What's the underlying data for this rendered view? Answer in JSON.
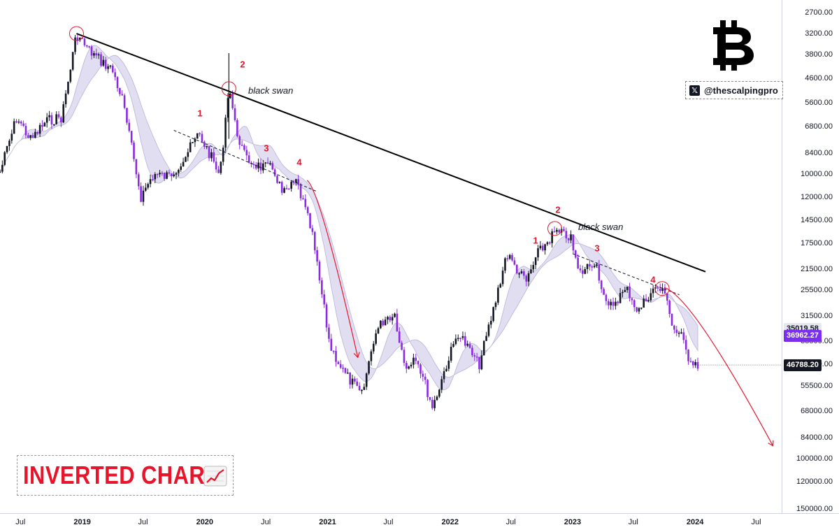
{
  "brand": {
    "handle": "@thescalpingpro",
    "x_glyph": "𝕏",
    "logo": "bitcoin-logo"
  },
  "banner": {
    "text": "INVERTED CHART",
    "icon": "chart-increasing-emoji",
    "color": "#e8142b"
  },
  "annotations": {
    "black_swan_1": "black swan",
    "black_swan_2": "black swan",
    "wave_labels_1": [
      "1",
      "2",
      "3",
      "4"
    ],
    "wave_labels_2": [
      "1",
      "2",
      "3",
      "4"
    ]
  },
  "colors": {
    "candle_up": "#131722",
    "candle_down": "#8a2be2",
    "ma_band": "#c9c3e6",
    "trendline": "#000000",
    "projection": "#e8142b",
    "wave_label": "#e8142b"
  },
  "price_tags": [
    {
      "label": "35019.58",
      "style": "grey"
    },
    {
      "label": "36962.27",
      "style": "purple"
    },
    {
      "label": "46788.20",
      "style": "black"
    }
  ],
  "chart_data": {
    "type": "candlestick",
    "title": "",
    "inverted": true,
    "y_scale": "log",
    "y_ticks": [
      "2700.00",
      "3200.00",
      "3800.00",
      "4600.00",
      "5600.00",
      "6800.00",
      "8400.00",
      "10000.00",
      "12000.00",
      "14500.00",
      "17500.00",
      "21500.00",
      "25500.00",
      "31500.00",
      "38500.00",
      "46500.00",
      "55500.00",
      "68000.00",
      "84000.00",
      "100000.00",
      "120000.00",
      "150000.00"
    ],
    "x_ticks": [
      {
        "label": "Jul",
        "year": false
      },
      {
        "label": "2019",
        "year": true
      },
      {
        "label": "Jul",
        "year": false
      },
      {
        "label": "2020",
        "year": true
      },
      {
        "label": "Jul",
        "year": false
      },
      {
        "label": "2021",
        "year": true
      },
      {
        "label": "Jul",
        "year": false
      },
      {
        "label": "2022",
        "year": true
      },
      {
        "label": "Jul",
        "year": false
      },
      {
        "label": "2023",
        "year": true
      },
      {
        "label": "Jul",
        "year": false
      },
      {
        "label": "2024",
        "year": true
      },
      {
        "label": "Jul",
        "year": false
      }
    ],
    "x_range": [
      "2018-05",
      "2024-09"
    ],
    "price_path": [
      [
        "2018-05-01",
        9800
      ],
      [
        "2018-06-20",
        6300
      ],
      [
        "2018-08-01",
        7600
      ],
      [
        "2018-09-15",
        6500
      ],
      [
        "2018-11-01",
        6300
      ],
      [
        "2018-12-15",
        3200
      ],
      [
        "2019-01-15",
        3600
      ],
      [
        "2019-02-15",
        3900
      ],
      [
        "2019-04-01",
        4300
      ],
      [
        "2019-05-01",
        5500
      ],
      [
        "2019-06-25",
        12000
      ],
      [
        "2019-08-01",
        10000
      ],
      [
        "2019-09-15",
        10200
      ],
      [
        "2019-10-25",
        9000
      ],
      [
        "2019-12-15",
        7200
      ],
      [
        "2020-01-20",
        8700
      ],
      [
        "2020-02-15",
        10200
      ],
      [
        "2020-03-13",
        4800
      ],
      [
        "2020-04-01",
        6800
      ],
      [
        "2020-05-01",
        8800
      ],
      [
        "2020-06-15",
        9400
      ],
      [
        "2020-07-25",
        9600
      ],
      [
        "2020-08-20",
        11800
      ],
      [
        "2020-10-01",
        10600
      ],
      [
        "2020-11-15",
        16000
      ],
      [
        "2021-01-08",
        40000
      ],
      [
        "2021-02-20",
        50000
      ],
      [
        "2021-04-14",
        60000
      ],
      [
        "2021-05-20",
        37000
      ],
      [
        "2021-06-20",
        32000
      ],
      [
        "2021-07-20",
        31000
      ],
      [
        "2021-08-20",
        48000
      ],
      [
        "2021-09-20",
        43000
      ],
      [
        "2021-11-10",
        66000
      ],
      [
        "2021-12-20",
        47000
      ],
      [
        "2022-01-25",
        36000
      ],
      [
        "2022-03-28",
        47000
      ],
      [
        "2022-05-10",
        30000
      ],
      [
        "2022-06-18",
        19000
      ],
      [
        "2022-08-15",
        24000
      ],
      [
        "2022-09-20",
        19000
      ],
      [
        "2022-11-09",
        16000
      ],
      [
        "2022-12-25",
        16600
      ],
      [
        "2023-01-20",
        22500
      ],
      [
        "2023-03-10",
        20000
      ],
      [
        "2023-04-14",
        30000
      ],
      [
        "2023-05-25",
        26500
      ],
      [
        "2023-06-15",
        25500
      ],
      [
        "2023-07-15",
        30500
      ],
      [
        "2023-08-20",
        26000
      ],
      [
        "2023-09-11",
        25000
      ],
      [
        "2023-10-10",
        27000
      ],
      [
        "2023-10-25",
        34500
      ],
      [
        "2023-11-20",
        37000
      ],
      [
        "2023-12-10",
        43500
      ],
      [
        "2024-01-10",
        46788
      ]
    ],
    "trendline": [
      [
        "2018-12-15",
        3200
      ],
      [
        "2024-02-01",
        22000
      ]
    ],
    "dashed_lines": [
      [
        [
          "2019-10-01",
          7000
        ],
        [
          "2020-12-01",
          11500
        ]
      ],
      [
        [
          "2023-01-01",
          19000
        ],
        [
          "2023-11-15",
          26500
        ]
      ]
    ],
    "projections": [
      [
        [
          "2020-11-01",
          10500
        ],
        [
          "2021-04-01",
          44000
        ]
      ],
      [
        [
          "2023-10-01",
          25000
        ],
        [
          "2024-08-20",
          90000
        ]
      ]
    ],
    "circled_points": [
      [
        "2018-12-15",
        3200
      ],
      [
        "2020-03-13",
        5000
      ],
      [
        "2022-11-09",
        15500
      ],
      [
        "2023-09-25",
        25200
      ]
    ],
    "last_price": 46788.2
  }
}
